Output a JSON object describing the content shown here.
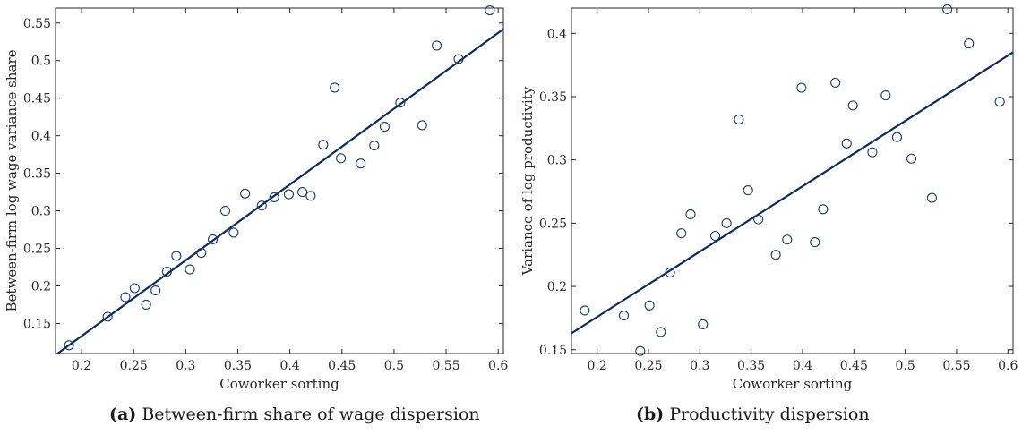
{
  "chart_data": [
    {
      "type": "scatter",
      "panel": "(a)",
      "caption": "Between-firm share of wage dispersion",
      "xlabel": "Coworker sorting",
      "ylabel": "Between-firm log wage variance share",
      "xlim": [
        0.175,
        0.605
      ],
      "ylim": [
        0.11,
        0.57
      ],
      "xticks": [
        "0.2",
        "0.25",
        "0.3",
        "0.35",
        "0.4",
        "0.45",
        "0.5",
        "0.55",
        "0.6"
      ],
      "xtick_values": [
        0.2,
        0.25,
        0.3,
        0.35,
        0.4,
        0.45,
        0.5,
        0.55,
        0.6
      ],
      "yticks": [
        "0.15",
        "0.2",
        "0.25",
        "0.3",
        "0.35",
        "0.4",
        "0.45",
        "0.5",
        "0.55"
      ],
      "ytick_values": [
        0.15,
        0.2,
        0.25,
        0.3,
        0.35,
        0.4,
        0.45,
        0.5,
        0.55
      ],
      "grid": false,
      "fit_line": {
        "x": [
          0.175,
          0.605
        ],
        "y": [
          0.108,
          0.542
        ]
      },
      "x": [
        0.188,
        0.225,
        0.242,
        0.251,
        0.262,
        0.271,
        0.282,
        0.291,
        0.304,
        0.315,
        0.326,
        0.338,
        0.346,
        0.357,
        0.373,
        0.385,
        0.399,
        0.412,
        0.42,
        0.432,
        0.443,
        0.449,
        0.468,
        0.481,
        0.491,
        0.506,
        0.527,
        0.541,
        0.562,
        0.592
      ],
      "y": [
        0.121,
        0.159,
        0.185,
        0.197,
        0.175,
        0.194,
        0.219,
        0.24,
        0.222,
        0.244,
        0.262,
        0.3,
        0.271,
        0.323,
        0.307,
        0.318,
        0.322,
        0.325,
        0.32,
        0.388,
        0.464,
        0.37,
        0.363,
        0.387,
        0.412,
        0.444,
        0.414,
        0.52,
        0.502,
        0.567
      ]
    },
    {
      "type": "scatter",
      "panel": "(b)",
      "caption": "Productivity dispersion",
      "xlabel": "Coworker sorting",
      "ylabel": "Variance of log productivity",
      "xlim": [
        0.175,
        0.605
      ],
      "ylim": [
        0.147,
        0.42
      ],
      "xticks": [
        "0.2",
        "0.25",
        "0.3",
        "0.35",
        "0.4",
        "0.45",
        "0.5",
        "0.55",
        "0.6"
      ],
      "xtick_values": [
        0.2,
        0.25,
        0.3,
        0.35,
        0.4,
        0.45,
        0.5,
        0.55,
        0.6
      ],
      "yticks": [
        "0.15",
        "0.2",
        "0.25",
        "0.3",
        "0.35",
        "0.4"
      ],
      "ytick_values": [
        0.15,
        0.2,
        0.25,
        0.3,
        0.35,
        0.4
      ],
      "grid": false,
      "fit_line": {
        "x": [
          0.175,
          0.605
        ],
        "y": [
          0.163,
          0.385
        ]
      },
      "x": [
        0.188,
        0.226,
        0.242,
        0.251,
        0.262,
        0.271,
        0.282,
        0.291,
        0.303,
        0.315,
        0.326,
        0.338,
        0.347,
        0.357,
        0.374,
        0.385,
        0.399,
        0.412,
        0.42,
        0.432,
        0.443,
        0.449,
        0.468,
        0.481,
        0.492,
        0.506,
        0.526,
        0.541,
        0.562,
        0.592
      ],
      "y": [
        0.181,
        0.177,
        0.149,
        0.185,
        0.164,
        0.211,
        0.242,
        0.257,
        0.17,
        0.24,
        0.25,
        0.332,
        0.276,
        0.253,
        0.225,
        0.237,
        0.357,
        0.235,
        0.261,
        0.361,
        0.313,
        0.343,
        0.306,
        0.351,
        0.318,
        0.301,
        0.27,
        0.419,
        0.392,
        0.346
      ]
    }
  ],
  "colors": {
    "marker": "#1f3a68",
    "line": "#0d2a5a",
    "axis": "#262626"
  }
}
